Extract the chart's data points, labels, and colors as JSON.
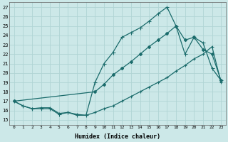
{
  "bg_color": "#cce8e8",
  "line_color": "#1a6b6b",
  "grid_color": "#b0d4d4",
  "xlabel": "Humidex (Indice chaleur)",
  "xlim": [
    -0.5,
    23.5
  ],
  "ylim": [
    14.5,
    27.5
  ],
  "yticks": [
    15,
    16,
    17,
    18,
    19,
    20,
    21,
    22,
    23,
    24,
    25,
    26,
    27
  ],
  "xticks": [
    0,
    1,
    2,
    3,
    4,
    5,
    6,
    7,
    8,
    9,
    10,
    11,
    12,
    13,
    14,
    15,
    16,
    17,
    18,
    19,
    20,
    21,
    22,
    23
  ],
  "line1_x": [
    0,
    1,
    2,
    3,
    4,
    5,
    6,
    7,
    8,
    9,
    10,
    11,
    12,
    13,
    14,
    15,
    16,
    17,
    18,
    19,
    20,
    21,
    22,
    23
  ],
  "line1_y": [
    17.0,
    16.5,
    16.2,
    16.2,
    16.2,
    15.6,
    15.8,
    15.5,
    15.5,
    19.0,
    21.0,
    22.2,
    23.8,
    24.3,
    24.8,
    25.5,
    26.3,
    27.0,
    25.0,
    22.0,
    23.8,
    23.2,
    20.5,
    19.2
  ],
  "line2_x": [
    0,
    9,
    10,
    11,
    12,
    13,
    14,
    15,
    16,
    17,
    18,
    19,
    20,
    21,
    22,
    23
  ],
  "line2_y": [
    17.0,
    18.0,
    18.8,
    19.8,
    20.5,
    21.2,
    22.0,
    22.8,
    23.5,
    24.2,
    25.0,
    23.5,
    23.8,
    22.5,
    22.0,
    19.2
  ],
  "line3_x": [
    0,
    1,
    2,
    3,
    4,
    5,
    6,
    7,
    8,
    9,
    10,
    11,
    12,
    13,
    14,
    15,
    16,
    17,
    18,
    19,
    20,
    21,
    22,
    23
  ],
  "line3_y": [
    17.0,
    16.5,
    16.2,
    16.3,
    16.3,
    15.7,
    15.8,
    15.6,
    15.5,
    15.8,
    16.2,
    16.5,
    17.0,
    17.5,
    18.0,
    18.5,
    19.0,
    19.5,
    20.2,
    20.8,
    21.5,
    22.0,
    22.8,
    19.0
  ]
}
